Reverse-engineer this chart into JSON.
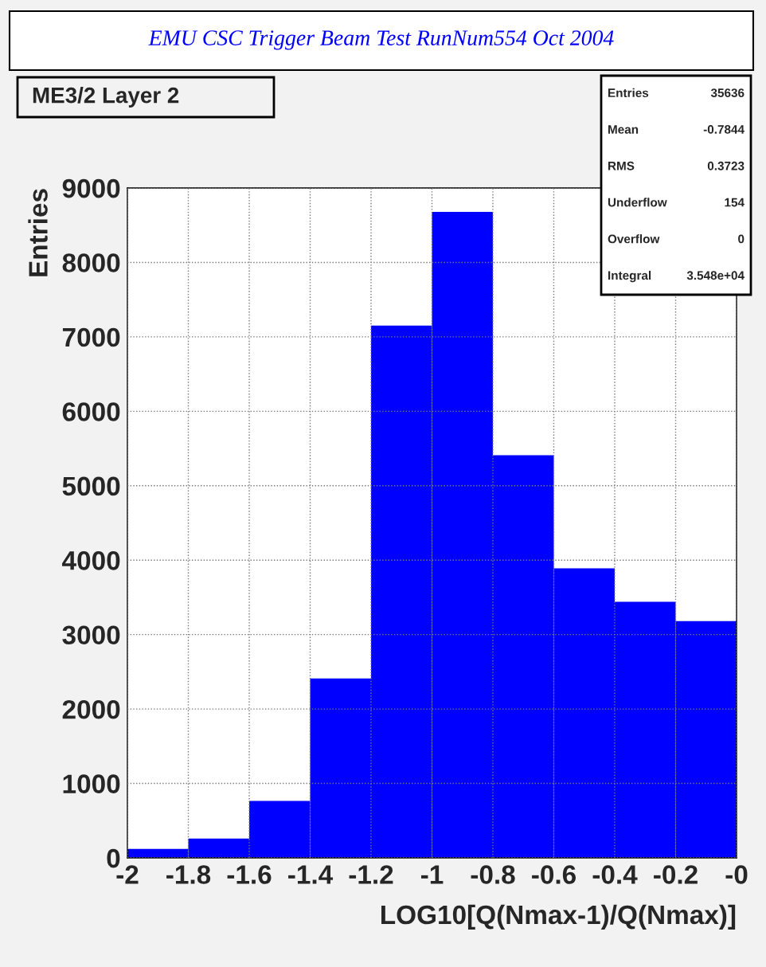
{
  "chart_data": {
    "type": "histogram",
    "title": "EMU CSC Trigger Beam Test RunNum554 Oct 2004",
    "subtitle": "ME3/2 Layer 2",
    "xlabel": "LOG10[Q(Nmax-1)/Q(Nmax)]",
    "ylabel": "Entries",
    "bins": [
      -2,
      -1.8,
      -1.6,
      -1.4,
      -1.2,
      -1,
      -0.8,
      -0.6,
      -0.4,
      -0.2,
      0
    ],
    "values": [
      120,
      260,
      765,
      2410,
      7150,
      8680,
      5410,
      3890,
      3440,
      3180
    ],
    "color": "#0000ff",
    "xlim": [
      -2,
      0
    ],
    "xticks": [
      -2,
      -1.8,
      -1.6,
      -1.4,
      -1.2,
      -1,
      -0.8,
      -0.6,
      -0.4,
      -0.2,
      {
        "value": 0,
        "label": "-0"
      }
    ],
    "ylim": [
      0,
      9000
    ],
    "yticks": [
      0,
      1000,
      2000,
      3000,
      4000,
      5000,
      6000,
      7000,
      8000,
      9000
    ],
    "grid": true,
    "annotations": [
      "Entries",
      "35636",
      "Mean",
      "-0.7844",
      "RMS",
      "0.3723",
      "Underflow",
      "154",
      "Overflow",
      "0",
      "Integral",
      "3.548e+04"
    ]
  }
}
